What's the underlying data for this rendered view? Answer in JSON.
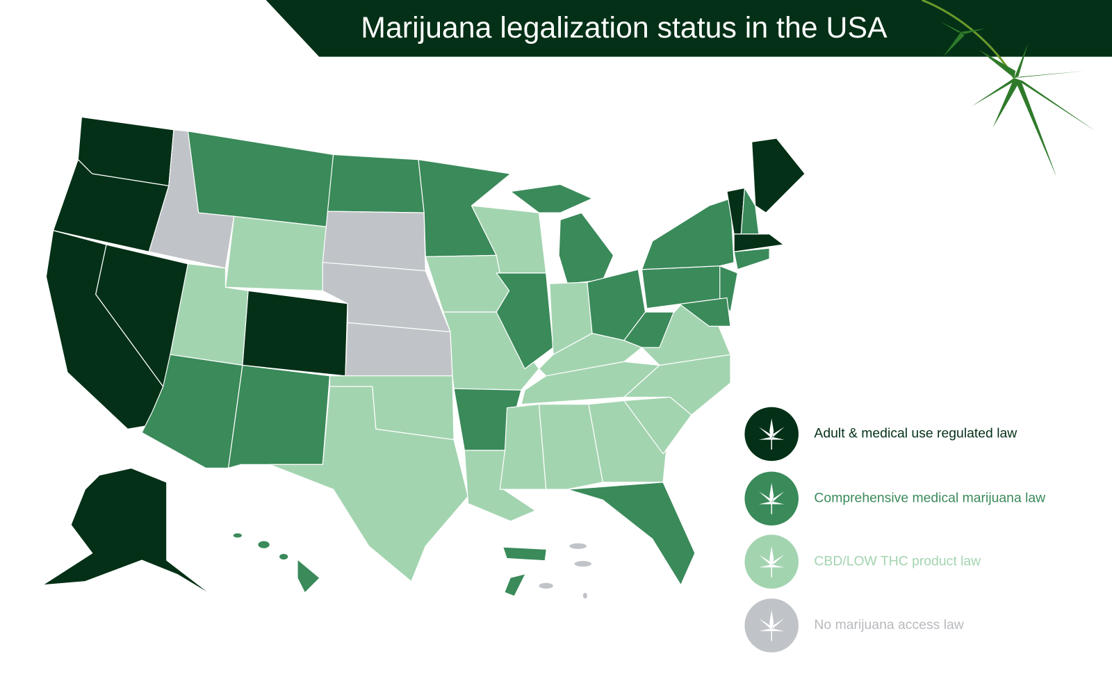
{
  "header": {
    "title": "Marijuana legalization status in the USA"
  },
  "legend": [
    {
      "label": "Adult & medical use regulated law",
      "color": "#033016",
      "text_color": "#033016"
    },
    {
      "label": "Comprehensive medical marijuana law",
      "color": "#3a8a5a",
      "text_color": "#3a8a5a"
    },
    {
      "label": "CBD/LOW THC product law",
      "color": "#a3d4b0",
      "text_color": "#a3d4b0"
    },
    {
      "label": "No marijuana access law",
      "color": "#c0c3c7",
      "text_color": "#b7babe"
    }
  ]
}
